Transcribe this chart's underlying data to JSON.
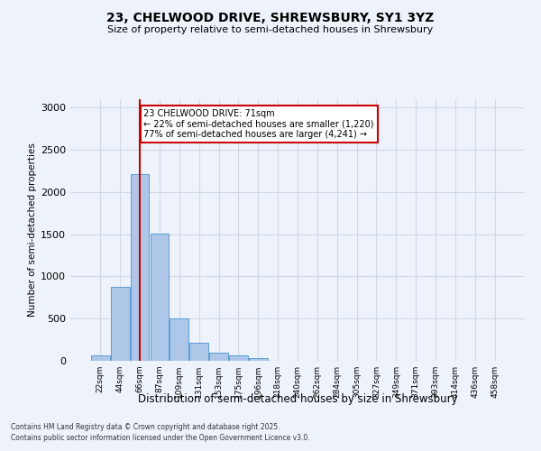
{
  "title": "23, CHELWOOD DRIVE, SHREWSBURY, SY1 3YZ",
  "subtitle": "Size of property relative to semi-detached houses in Shrewsbury",
  "xlabel": "Distribution of semi-detached houses by size in Shrewsbury",
  "ylabel": "Number of semi-detached properties",
  "bin_labels": [
    "22sqm",
    "44sqm",
    "66sqm",
    "87sqm",
    "109sqm",
    "131sqm",
    "153sqm",
    "175sqm",
    "196sqm",
    "218sqm",
    "240sqm",
    "262sqm",
    "284sqm",
    "305sqm",
    "327sqm",
    "349sqm",
    "371sqm",
    "393sqm",
    "414sqm",
    "436sqm",
    "458sqm"
  ],
  "bar_values": [
    60,
    880,
    2210,
    1510,
    500,
    210,
    100,
    60,
    35,
    0,
    0,
    0,
    0,
    0,
    0,
    0,
    0,
    0,
    0,
    0,
    0
  ],
  "bar_color": "#aec6e8",
  "bar_edge_color": "#5a9fd4",
  "property_bin_index": 2,
  "annotation_line1": "23 CHELWOOD DRIVE: 71sqm",
  "annotation_line2": "← 22% of semi-detached houses are smaller (1,220)",
  "annotation_line3": "77% of semi-detached houses are larger (4,241) →",
  "annotation_box_color": "#ffffff",
  "annotation_box_edge": "#cc0000",
  "vline_color": "#cc0000",
  "grid_color": "#d0d8e8",
  "background_color": "#eef2fa",
  "ylim": [
    0,
    3100
  ],
  "yticks": [
    0,
    500,
    1000,
    1500,
    2000,
    2500,
    3000
  ],
  "footer_line1": "Contains HM Land Registry data © Crown copyright and database right 2025.",
  "footer_line2": "Contains public sector information licensed under the Open Government Licence v3.0."
}
